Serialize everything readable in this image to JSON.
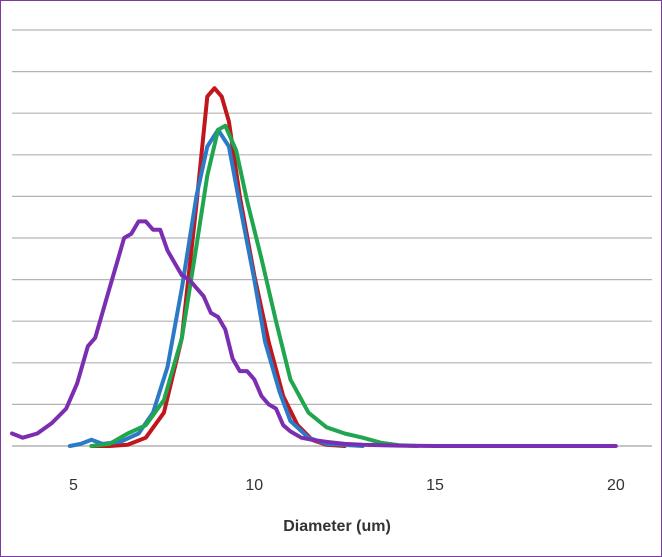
{
  "chart_data": {
    "type": "line",
    "title": "",
    "xlabel": "Diameter (um)",
    "ylabel": "",
    "xlim": [
      3.3,
      21
    ],
    "ylim": [
      0,
      10
    ],
    "x_ticks": [
      "5",
      "10",
      "15",
      "20"
    ],
    "y_gridlines": 10,
    "grid": true,
    "legend": "none",
    "colors": {
      "frame": "#7a3aa0",
      "grid": "#b3b3b3",
      "text": "#333333"
    },
    "series": [
      {
        "color": "#c0161c",
        "points": [
          [
            5.5,
            0
          ],
          [
            6.0,
            0
          ],
          [
            6.5,
            0.03
          ],
          [
            7.0,
            0.2
          ],
          [
            7.5,
            0.8
          ],
          [
            8.0,
            2.6
          ],
          [
            8.4,
            5.8
          ],
          [
            8.7,
            8.4
          ],
          [
            8.9,
            8.6
          ],
          [
            9.1,
            8.4
          ],
          [
            9.3,
            7.8
          ],
          [
            9.6,
            6.0
          ],
          [
            10.0,
            4.1
          ],
          [
            10.4,
            2.5
          ],
          [
            10.8,
            1.2
          ],
          [
            11.2,
            0.5
          ],
          [
            11.6,
            0.15
          ],
          [
            12.0,
            0.03
          ],
          [
            12.5,
            0
          ]
        ]
      },
      {
        "color": "#2a7ac7",
        "points": [
          [
            4.9,
            0
          ],
          [
            5.2,
            0.05
          ],
          [
            5.5,
            0.15
          ],
          [
            5.8,
            0.05
          ],
          [
            6.3,
            0.1
          ],
          [
            6.8,
            0.3
          ],
          [
            7.2,
            0.8
          ],
          [
            7.6,
            1.9
          ],
          [
            8.0,
            3.8
          ],
          [
            8.4,
            6.0
          ],
          [
            8.7,
            7.2
          ],
          [
            9.0,
            7.6
          ],
          [
            9.3,
            7.2
          ],
          [
            9.6,
            5.8
          ],
          [
            10.0,
            4.0
          ],
          [
            10.3,
            2.5
          ],
          [
            10.7,
            1.3
          ],
          [
            11.0,
            0.6
          ],
          [
            11.5,
            0.2
          ],
          [
            12.0,
            0.05
          ],
          [
            13.0,
            0
          ]
        ]
      },
      {
        "color": "#1fa64e",
        "points": [
          [
            5.5,
            0
          ],
          [
            6.0,
            0.05
          ],
          [
            6.5,
            0.3
          ],
          [
            7.0,
            0.5
          ],
          [
            7.5,
            1.1
          ],
          [
            8.0,
            2.6
          ],
          [
            8.4,
            4.8
          ],
          [
            8.7,
            6.5
          ],
          [
            9.0,
            7.6
          ],
          [
            9.2,
            7.7
          ],
          [
            9.5,
            7.1
          ],
          [
            9.8,
            5.9
          ],
          [
            10.2,
            4.5
          ],
          [
            10.6,
            3.0
          ],
          [
            11.0,
            1.6
          ],
          [
            11.5,
            0.8
          ],
          [
            12.0,
            0.45
          ],
          [
            12.5,
            0.3
          ],
          [
            13.0,
            0.2
          ],
          [
            13.5,
            0.08
          ],
          [
            14.0,
            0.02
          ],
          [
            14.5,
            0
          ]
        ]
      },
      {
        "color": "#7b2fb0",
        "points": [
          [
            3.3,
            0.3
          ],
          [
            3.6,
            0.2
          ],
          [
            4.0,
            0.3
          ],
          [
            4.4,
            0.55
          ],
          [
            4.8,
            0.9
          ],
          [
            5.1,
            1.5
          ],
          [
            5.4,
            2.4
          ],
          [
            5.6,
            2.6
          ],
          [
            5.8,
            3.2
          ],
          [
            6.0,
            3.8
          ],
          [
            6.2,
            4.4
          ],
          [
            6.4,
            5.0
          ],
          [
            6.6,
            5.1
          ],
          [
            6.8,
            5.4
          ],
          [
            7.0,
            5.4
          ],
          [
            7.2,
            5.2
          ],
          [
            7.4,
            5.2
          ],
          [
            7.6,
            4.7
          ],
          [
            7.8,
            4.4
          ],
          [
            8.0,
            4.1
          ],
          [
            8.2,
            4.0
          ],
          [
            8.4,
            3.8
          ],
          [
            8.6,
            3.6
          ],
          [
            8.8,
            3.2
          ],
          [
            9.0,
            3.1
          ],
          [
            9.2,
            2.8
          ],
          [
            9.4,
            2.1
          ],
          [
            9.6,
            1.8
          ],
          [
            9.8,
            1.8
          ],
          [
            10.0,
            1.6
          ],
          [
            10.2,
            1.2
          ],
          [
            10.4,
            1.0
          ],
          [
            10.6,
            0.9
          ],
          [
            10.8,
            0.5
          ],
          [
            11.0,
            0.35
          ],
          [
            11.3,
            0.2
          ],
          [
            11.6,
            0.15
          ],
          [
            12.0,
            0.1
          ],
          [
            12.5,
            0.05
          ],
          [
            13.0,
            0.03
          ],
          [
            14.0,
            0.01
          ],
          [
            15.0,
            0
          ],
          [
            20.0,
            0
          ]
        ]
      }
    ]
  }
}
